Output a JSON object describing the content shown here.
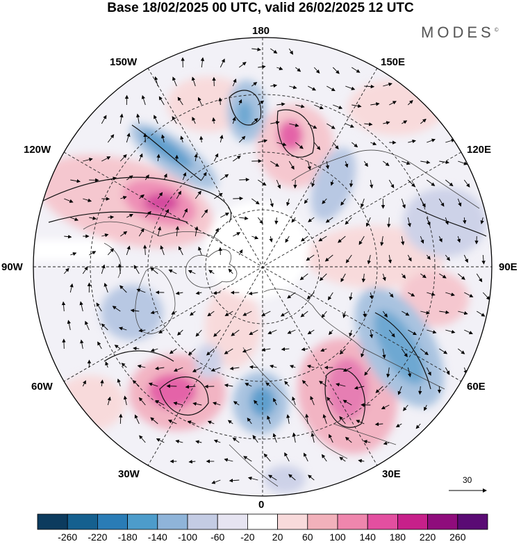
{
  "title": "Base 18/02/2025 00 UTC, valid 26/02/2025 12 UTC",
  "brand": "MODES",
  "brand_mark": "©",
  "longitude_labels": {
    "top": "180",
    "top_left": "150W",
    "top_right": "150E",
    "upper_left": "120W",
    "upper_right": "120E",
    "left": "90W",
    "right": "90E",
    "lower_left": "60W",
    "lower_right": "60E",
    "bottom_left": "30W",
    "bottom_right": "30E",
    "bottom": "0"
  },
  "reference_vector": {
    "label": "30"
  },
  "colorbar": {
    "ticks": [
      "-260",
      "-220",
      "-180",
      "-140",
      "-100",
      "-60",
      "-20",
      "20",
      "60",
      "100",
      "140",
      "180",
      "220",
      "260"
    ],
    "colors": [
      "#0c3b5e",
      "#15608f",
      "#2a7cb6",
      "#4d9ccb",
      "#8fb4d9",
      "#c4cce4",
      "#e6e4f1",
      "#ffffff",
      "#f8dadb",
      "#f2b1bb",
      "#ef86ad",
      "#e34fa0",
      "#c7208a",
      "#8f0c7c",
      "#5a0b74"
    ]
  },
  "anomaly_fields": [
    {
      "sign": "positive",
      "level": 3,
      "region": "Alaska / NE Pacific"
    },
    {
      "sign": "positive",
      "level": 3,
      "region": "North Atlantic"
    },
    {
      "sign": "positive",
      "level": 2,
      "region": "Eastern Europe"
    },
    {
      "sign": "positive",
      "level": 3,
      "region": "East Siberian Sea"
    },
    {
      "sign": "negative",
      "level": 2,
      "region": "Central Asia"
    },
    {
      "sign": "negative",
      "level": 2,
      "region": "Western Europe"
    },
    {
      "sign": "negative",
      "level": 2,
      "region": "Gulf of Alaska"
    },
    {
      "sign": "negative",
      "level": 1,
      "region": "Hudson Bay"
    }
  ]
}
